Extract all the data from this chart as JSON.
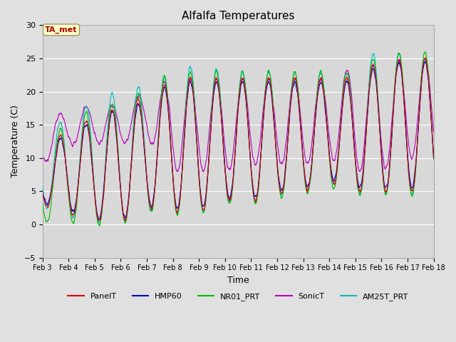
{
  "title": "Alfalfa Temperatures",
  "xlabel": "Time",
  "ylabel": "Temperature (C)",
  "ylim": [
    -5,
    30
  ],
  "xlim_days": [
    3,
    18
  ],
  "yticks": [
    -5,
    0,
    5,
    10,
    15,
    20,
    25,
    30
  ],
  "xtick_labels": [
    "Feb 3",
    "Feb 4",
    "Feb 5",
    "Feb 6",
    "Feb 7",
    "Feb 8",
    "Feb 9",
    "Feb 10",
    "Feb 11",
    "Feb 12",
    "Feb 13",
    "Feb 14",
    "Feb 15",
    "Feb 16",
    "Feb 17",
    "Feb 18"
  ],
  "bg_color": "#e0e0e0",
  "plot_bg_color": "#d8d8d8",
  "series_order": [
    "PanelT",
    "HMP60",
    "NR01_PRT",
    "SonicT",
    "AM25T_PRT"
  ],
  "series": {
    "PanelT": {
      "color": "#dd0000",
      "lw": 0.8
    },
    "HMP60": {
      "color": "#0000cc",
      "lw": 0.8
    },
    "NR01_PRT": {
      "color": "#00bb00",
      "lw": 0.8
    },
    "SonicT": {
      "color": "#bb00bb",
      "lw": 0.8
    },
    "AM25T_PRT": {
      "color": "#00bbbb",
      "lw": 0.8
    }
  },
  "annotation_text": "TA_met",
  "annotation_color": "#aa0000",
  "annotation_bg": "#ffffcc",
  "legend_colors": {
    "PanelT": "#dd0000",
    "HMP60": "#0000cc",
    "NR01_PRT": "#00bb00",
    "SonicT": "#bb00bb",
    "AM25T_PRT": "#00bbbb"
  },
  "n_days": 15,
  "pts_per_day": 144
}
